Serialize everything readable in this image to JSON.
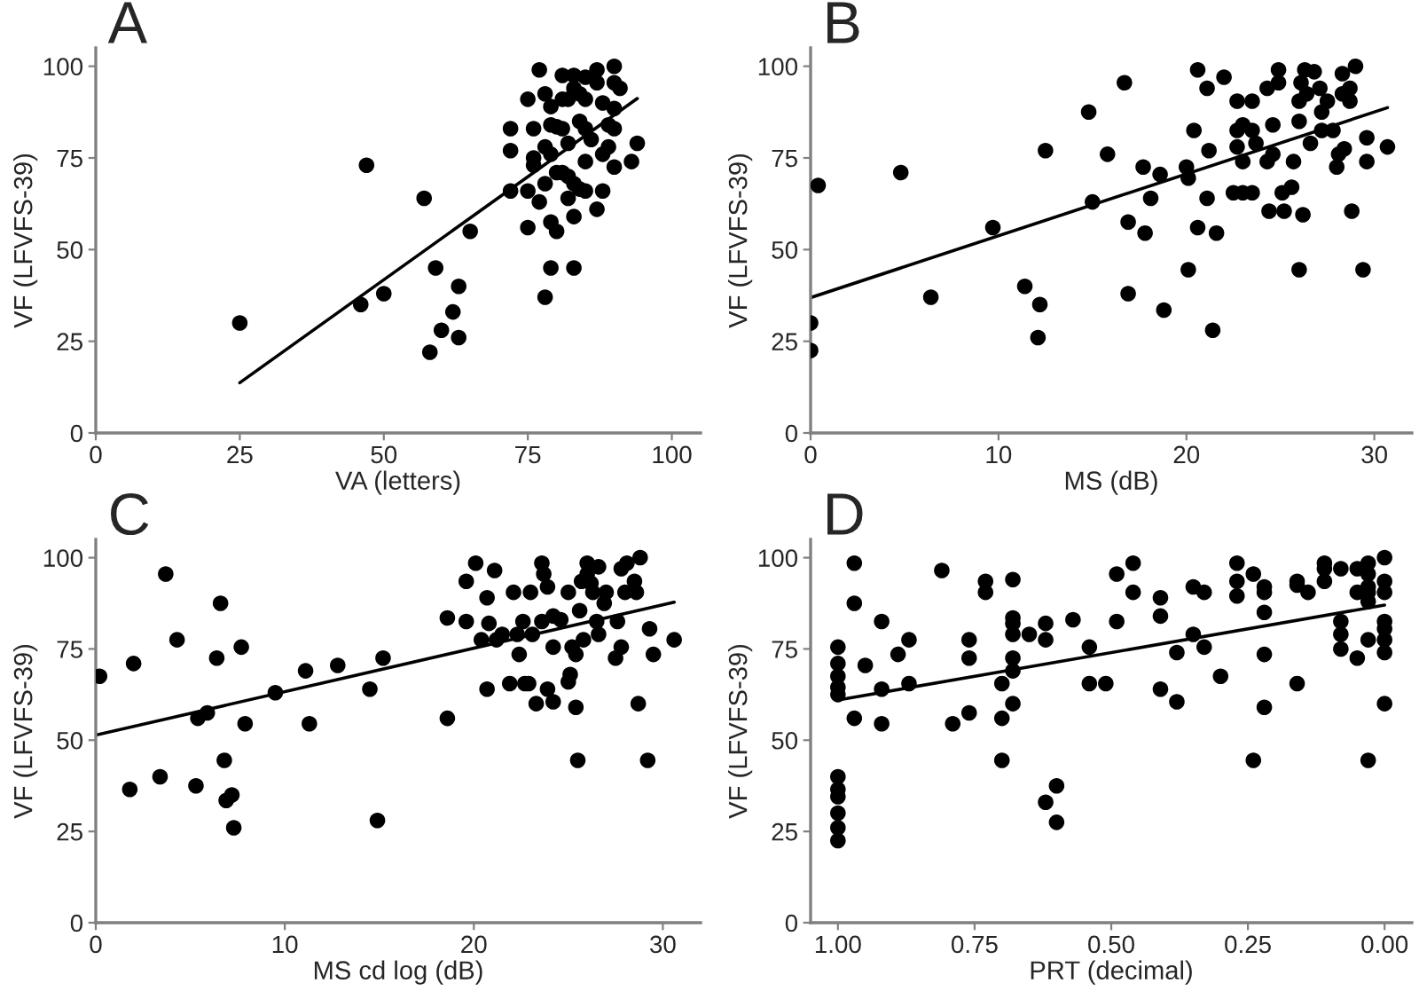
{
  "chart_data": [
    {
      "type": "scatter",
      "title": "A",
      "xlabel": "VA (letters)",
      "ylabel": "VF (LFVFS-39)",
      "xlim": [
        0,
        105
      ],
      "ylim": [
        0,
        105
      ],
      "xticks": [
        0,
        25,
        50,
        75,
        100
      ],
      "yticks": [
        0,
        25,
        50,
        75,
        100
      ],
      "grid": false,
      "series": [
        {
          "type": "scatter",
          "marker": "circle",
          "color": "#000000",
          "x": [
            25,
            46,
            47,
            50,
            57,
            58,
            59,
            60,
            62,
            63,
            63,
            65,
            72,
            72,
            72,
            75,
            75,
            75,
            76,
            76,
            76,
            77,
            77,
            78,
            78,
            78,
            78,
            79,
            79,
            79,
            79,
            79,
            80,
            80,
            80,
            81,
            81,
            81,
            81,
            82,
            82,
            82,
            82,
            83,
            83,
            83,
            83,
            83,
            84,
            84,
            84,
            85,
            85,
            85,
            85,
            85,
            86,
            87,
            87,
            87,
            88,
            88,
            88,
            89,
            89,
            90,
            90,
            90,
            90,
            90,
            91,
            93,
            94
          ],
          "values": [
            30,
            35,
            73,
            38,
            64,
            22,
            45,
            28,
            33,
            40,
            26,
            55,
            83,
            77,
            66,
            91,
            66,
            56,
            83,
            75,
            73,
            99,
            63,
            92.5,
            78,
            68,
            37,
            89,
            84,
            76,
            57.5,
            45,
            83.5,
            71,
            55,
            97.5,
            83,
            91,
            71,
            79,
            91,
            64,
            70,
            97.5,
            94,
            45,
            59,
            68,
            92.5,
            85,
            66.5,
            97,
            91,
            83,
            74,
            66,
            80,
            99,
            95.5,
            61,
            90,
            76,
            66,
            84,
            78,
            100,
            95.5,
            88.5,
            83,
            72.5,
            94,
            74,
            79
          ]
        },
        {
          "type": "line",
          "color": "#000000",
          "line_style": "solid",
          "x": [
            25,
            94
          ],
          "values": [
            13.7,
            91.2
          ]
        }
      ]
    },
    {
      "type": "scatter",
      "title": "B",
      "xlabel": "MS (dB)",
      "ylabel": "VF (LFVFS-39)",
      "xlim": [
        0,
        32
      ],
      "ylim": [
        0,
        105
      ],
      "xticks": [
        0,
        10,
        20,
        30
      ],
      "yticks": [
        0,
        25,
        50,
        75,
        100
      ],
      "grid": false,
      "series": [
        {
          "type": "scatter",
          "marker": "circle",
          "color": "#000000",
          "x": [
            0,
            0,
            0.4,
            4.8,
            6.4,
            9.7,
            11.4,
            12.1,
            12.2,
            12.5,
            14.8,
            15,
            15.8,
            16.7,
            16.9,
            16.9,
            17.7,
            17.8,
            18.1,
            18.6,
            18.8,
            20,
            20.1,
            20.1,
            20.4,
            20.6,
            20.6,
            21.1,
            21.2,
            21.1,
            21.4,
            21.6,
            22,
            22.5,
            22.7,
            22.7,
            22.7,
            23,
            23,
            23,
            23.5,
            23.5,
            23.5,
            23.7,
            24.3,
            24.3,
            24.4,
            24.6,
            24.6,
            24.9,
            24.9,
            25.1,
            25.2,
            25.6,
            25.7,
            26,
            26,
            26,
            26.1,
            26.2,
            26.3,
            26.4,
            26.6,
            26.8,
            27.1,
            27.2,
            27.2,
            27.5,
            27.8,
            28,
            28.1,
            28.3,
            28.3,
            28.4,
            28.7,
            28.7,
            28.8,
            29,
            29.4,
            29.6,
            29.6,
            30.7
          ],
          "values": [
            30,
            22.5,
            67.5,
            71,
            37,
            56,
            40,
            26,
            35,
            77,
            87.5,
            63,
            76,
            95.5,
            57.5,
            38,
            72.5,
            54.5,
            64,
            70.5,
            33.5,
            72.5,
            69.5,
            44.5,
            82.5,
            99,
            56,
            94,
            77,
            64,
            28,
            54.5,
            97,
            65.5,
            90.5,
            82.5,
            78,
            84,
            74,
            65.5,
            90.5,
            82.5,
            65.5,
            79,
            94,
            74,
            60.5,
            84,
            76,
            99,
            95.5,
            65.5,
            60.5,
            67,
            74,
            90.5,
            44.5,
            85,
            95.5,
            59.5,
            99,
            92.5,
            79,
            98.5,
            94,
            82.5,
            87.5,
            90.5,
            82.5,
            72.5,
            76,
            98,
            92.5,
            77.5,
            94,
            90.5,
            60.5,
            100,
            44.5,
            80.5,
            74,
            78
          ]
        },
        {
          "type": "line",
          "color": "#000000",
          "line_style": "solid",
          "x": [
            0,
            30.7
          ],
          "values": [
            36.9,
            88.7
          ]
        }
      ]
    },
    {
      "type": "scatter",
      "title": "C",
      "xlabel": "MS cd log (dB)",
      "ylabel": "VF (LFVFS-39)",
      "xlim": [
        0,
        32
      ],
      "ylim": [
        0,
        105
      ],
      "xticks": [
        0,
        10,
        20,
        30
      ],
      "yticks": [
        0,
        25,
        50,
        75,
        100
      ],
      "grid": false,
      "series": [
        {
          "type": "scatter",
          "marker": "circle",
          "color": "#000000",
          "x": [
            0.2,
            1.8,
            2,
            3.4,
            3.7,
            4.3,
            5.3,
            5.4,
            5.9,
            6.4,
            6.6,
            6.8,
            6.9,
            7.2,
            7.3,
            7.7,
            7.9,
            9.5,
            11.1,
            11.3,
            12.8,
            14.5,
            14.9,
            15.2,
            18.6,
            18.6,
            19.6,
            19.6,
            20.1,
            20.4,
            20.7,
            20.7,
            20.8,
            21.1,
            21.2,
            21.5,
            21.9,
            22.1,
            22.3,
            22.4,
            22.6,
            22.7,
            22.9,
            23,
            23.1,
            23.3,
            23.6,
            23.6,
            23.7,
            23.9,
            23.9,
            24.2,
            24.2,
            24.2,
            24.6,
            25,
            25,
            25.1,
            25.2,
            25.4,
            25.4,
            25.5,
            25.6,
            25.7,
            25.8,
            26,
            26,
            26.2,
            26.3,
            26.5,
            26.6,
            26.6,
            26.9,
            27,
            27.5,
            27.6,
            27.8,
            27.8,
            28,
            28.1,
            28.5,
            28.6,
            28.7,
            28.8,
            29.2,
            29.3,
            29.5,
            30.6
          ],
          "values": [
            67.5,
            36.5,
            71,
            40,
            95.5,
            77.5,
            37.5,
            56,
            57.5,
            72.5,
            87.5,
            44.5,
            33.5,
            35,
            26,
            75.5,
            54.5,
            63,
            69,
            54.5,
            70.5,
            64,
            28,
            72.5,
            83.5,
            56,
            82.5,
            93.5,
            98.5,
            77.5,
            89,
            64,
            82,
            96.5,
            77.5,
            79,
            65.5,
            90.5,
            79,
            73.5,
            82.5,
            65.5,
            65.5,
            90.5,
            79,
            60,
            82.5,
            98.5,
            95.5,
            92,
            64,
            60.5,
            75.5,
            84,
            83,
            90.5,
            66,
            68,
            75.5,
            73.5,
            59,
            44.5,
            85.5,
            93.5,
            77.5,
            98.5,
            95.5,
            93,
            90.5,
            82.5,
            79,
            97.5,
            87.5,
            90.5,
            72.5,
            82.5,
            97,
            75.5,
            90.5,
            98.5,
            93.5,
            90.5,
            60,
            100,
            44.5,
            80.5,
            73.5,
            77.5
          ]
        },
        {
          "type": "line",
          "color": "#000000",
          "line_style": "solid",
          "x": [
            0,
            30.6
          ],
          "values": [
            51.4,
            87.8
          ]
        }
      ]
    },
    {
      "type": "scatter",
      "title": "D",
      "xlabel": "PRT (decimal)",
      "ylabel": "VF (LFVFS-39)",
      "xlim": [
        1.05,
        -0.05
      ],
      "ylim": [
        0,
        105
      ],
      "xticks": [
        {
          "value": 1,
          "label": "1.00"
        },
        {
          "value": 0.75,
          "label": "0.75"
        },
        {
          "value": 0.5,
          "label": "0.50"
        },
        {
          "value": 0.25,
          "label": "0.25"
        },
        {
          "value": 0,
          "label": "0.00"
        }
      ],
      "yticks": [
        0,
        25,
        50,
        75,
        100
      ],
      "grid": false,
      "series": [
        {
          "type": "scatter",
          "marker": "circle",
          "color": "#000000",
          "x": [
            1,
            1,
            1,
            1,
            1,
            1,
            1,
            1,
            1,
            1,
            1,
            0.97,
            0.97,
            0.97,
            0.95,
            0.92,
            0.92,
            0.92,
            0.89,
            0.87,
            0.87,
            0.81,
            0.79,
            0.76,
            0.76,
            0.76,
            0.73,
            0.73,
            0.7,
            0.7,
            0.7,
            0.68,
            0.68,
            0.68,
            0.68,
            0.68,
            0.68,
            0.68,
            0.65,
            0.62,
            0.62,
            0.62,
            0.6,
            0.6,
            0.57,
            0.54,
            0.54,
            0.51,
            0.49,
            0.49,
            0.46,
            0.46,
            0.41,
            0.41,
            0.41,
            0.38,
            0.38,
            0.35,
            0.35,
            0.33,
            0.33,
            0.3,
            0.27,
            0.27,
            0.27,
            0.24,
            0.24,
            0.22,
            0.22,
            0.22,
            0.22,
            0.22,
            0.16,
            0.16,
            0.16,
            0.14,
            0.11,
            0.11,
            0.11,
            0.08,
            0.08,
            0.08,
            0.08,
            0.05,
            0.05,
            0.05,
            0.03,
            0.03,
            0.03,
            0.03,
            0.03,
            0.03,
            0.03,
            0,
            0,
            0,
            0,
            0,
            0,
            0,
            0
          ],
          "values": [
            75.5,
            71,
            67.5,
            64.5,
            62.5,
            40,
            36.5,
            34.5,
            30,
            26,
            22.5,
            98.5,
            87.5,
            56,
            70.5,
            82.5,
            64,
            54.5,
            73.5,
            77.5,
            65.5,
            96.5,
            54.5,
            77.5,
            72.5,
            57.5,
            93.5,
            90.5,
            65.5,
            56,
            44.5,
            94,
            83.5,
            82,
            79,
            72.5,
            69,
            60,
            79,
            82,
            77.5,
            33,
            37.5,
            27.5,
            83,
            75.5,
            65.5,
            65.5,
            82.5,
            95.5,
            98.5,
            90.5,
            89,
            84,
            64,
            60.5,
            74,
            92,
            79,
            90.5,
            75.5,
            67.5,
            98.5,
            93.5,
            89.5,
            95.5,
            44.5,
            92,
            90.5,
            85,
            73.5,
            59,
            93.5,
            92.5,
            65.5,
            90.5,
            98.5,
            97,
            93.5,
            97,
            82.5,
            79,
            75,
            97,
            90.5,
            72.5,
            98.5,
            95.5,
            92,
            90.5,
            88,
            77.5,
            44.5,
            100,
            93.5,
            90.5,
            82.5,
            80.5,
            77.5,
            74,
            60
          ]
        },
        {
          "type": "line",
          "color": "#000000",
          "line_style": "solid",
          "x": [
            1,
            0
          ],
          "values": [
            61,
            87
          ]
        }
      ]
    }
  ]
}
